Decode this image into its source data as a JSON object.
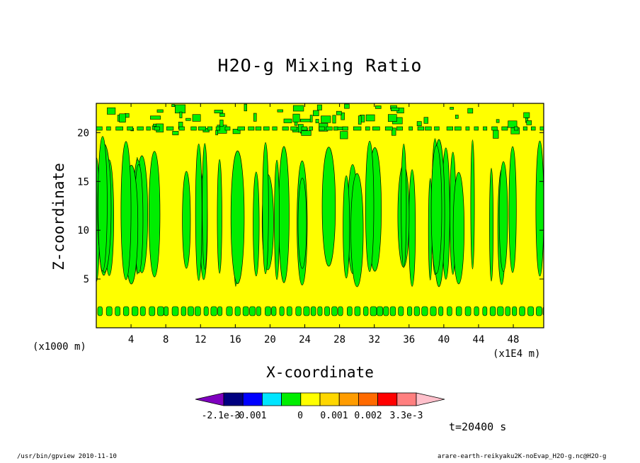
{
  "chart_data": {
    "type": "heatmap",
    "title": "H2O-g Mixing Ratio",
    "xlabel": "X-coordinate",
    "ylabel": "Z-coordinate",
    "x_unit": "(x1000 m)",
    "x_scale": "(x1E4 m)",
    "xlim": [
      0,
      51.5
    ],
    "ylim": [
      0,
      23
    ],
    "x_ticks": [
      4,
      8,
      12,
      16,
      20,
      24,
      28,
      32,
      36,
      40,
      44,
      48
    ],
    "x_tick_labels": [
      "4",
      "8",
      "12",
      "16",
      "20",
      "24",
      "28",
      "32",
      "36",
      "40",
      "44",
      "48"
    ],
    "y_ticks": [
      5,
      10,
      15,
      20
    ],
    "y_tick_labels": [
      "5",
      "10",
      "15",
      "20"
    ],
    "colors": {
      "background_level": "#ffff00",
      "anomaly_level": "#00ee00",
      "contour_line": "#000000"
    },
    "colorbar": {
      "colors": [
        "#7f00bf",
        "#00007f",
        "#0000ff",
        "#00e5ff",
        "#00ee00",
        "#ffff00",
        "#ffd700",
        "#ff9c00",
        "#ff6a00",
        "#ff0000",
        "#ff7f7f",
        "#ffc0cb"
      ],
      "labels": [
        "-2.1e-3",
        "-0.001",
        "0",
        "0.001",
        "0.002",
        "3.3e-3"
      ]
    },
    "time_label": "t=20400 s"
  },
  "footer": {
    "left": "/usr/bin/gpview   2010-11-10",
    "right": "arare-earth-reikyaku2K-noEvap_H2O-g.nc@H2O-g"
  }
}
